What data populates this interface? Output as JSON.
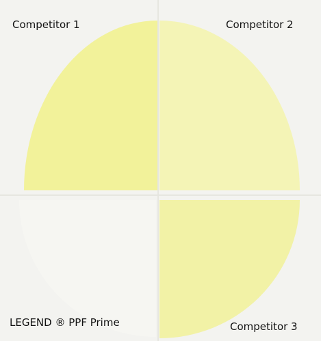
{
  "labels": {
    "top_left": "Competitor 1",
    "top_right": "Competitor 2",
    "bottom_left": "LEGEND ® PPF Prime",
    "bottom_right": "Competitor 3"
  }
}
